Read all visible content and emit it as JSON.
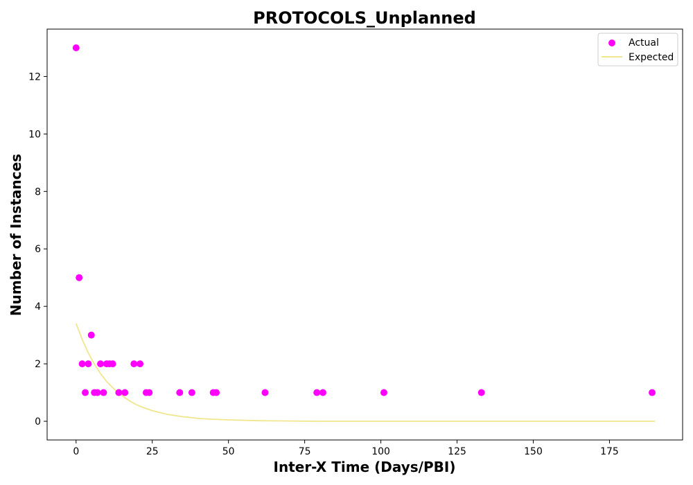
{
  "chart_data": {
    "type": "scatter",
    "title": "PROTOCOLS_Unplanned",
    "xlabel": "Inter-X Time (Days/PBI)",
    "ylabel": "Number of Instances",
    "xlim": [
      -9.5,
      199
    ],
    "ylim": [
      -0.65,
      13.65
    ],
    "x_ticks": [
      0,
      25,
      50,
      75,
      100,
      125,
      150,
      175
    ],
    "y_ticks": [
      0,
      2,
      4,
      6,
      8,
      10,
      12
    ],
    "grid": false,
    "legend_position": "top-right",
    "series": [
      {
        "name": "Actual",
        "kind": "scatter",
        "color": "#ff00ff",
        "points": [
          [
            0,
            13
          ],
          [
            1,
            5
          ],
          [
            2,
            2
          ],
          [
            3,
            1
          ],
          [
            4,
            2
          ],
          [
            5,
            3
          ],
          [
            6,
            1
          ],
          [
            7,
            1
          ],
          [
            8,
            2
          ],
          [
            9,
            1
          ],
          [
            10,
            2
          ],
          [
            11,
            2
          ],
          [
            12,
            2
          ],
          [
            14,
            1
          ],
          [
            16,
            1
          ],
          [
            19,
            2
          ],
          [
            21,
            2
          ],
          [
            23,
            1
          ],
          [
            24,
            1
          ],
          [
            34,
            1
          ],
          [
            38,
            1
          ],
          [
            45,
            1
          ],
          [
            46,
            1
          ],
          [
            62,
            1
          ],
          [
            79,
            1
          ],
          [
            81,
            1
          ],
          [
            101,
            1
          ],
          [
            133,
            1
          ],
          [
            189,
            1
          ]
        ]
      },
      {
        "name": "Expected",
        "kind": "line",
        "color": "#f0e68c",
        "x": [
          0,
          2,
          4,
          6,
          8,
          10,
          12,
          14,
          16,
          18,
          20,
          22,
          25,
          30,
          35,
          40,
          45,
          50,
          60,
          70,
          80,
          90,
          100,
          120,
          140,
          160,
          180,
          190
        ],
        "y": [
          3.4,
          2.85,
          2.38,
          1.99,
          1.66,
          1.39,
          1.17,
          0.97,
          0.82,
          0.68,
          0.57,
          0.48,
          0.37,
          0.24,
          0.16,
          0.1,
          0.07,
          0.05,
          0.02,
          0.01,
          0.0,
          0.0,
          0.0,
          0.0,
          0.0,
          0.0,
          0.0,
          0.0
        ]
      }
    ]
  }
}
